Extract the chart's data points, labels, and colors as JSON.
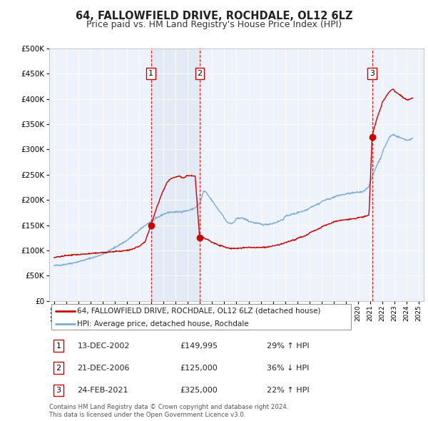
{
  "title": "64, FALLOWFIELD DRIVE, ROCHDALE, OL12 6LZ",
  "subtitle": "Price paid vs. HM Land Registry's House Price Index (HPI)",
  "title_fontsize": 10.5,
  "subtitle_fontsize": 9,
  "ylim": [
    0,
    500000
  ],
  "yticks": [
    0,
    50000,
    100000,
    150000,
    200000,
    250000,
    300000,
    350000,
    400000,
    450000,
    500000
  ],
  "xlim_start": 1994.6,
  "xlim_end": 2025.4,
  "xtick_years": [
    1995,
    1996,
    1997,
    1998,
    1999,
    2000,
    2001,
    2002,
    2003,
    2004,
    2005,
    2006,
    2007,
    2008,
    2009,
    2010,
    2011,
    2012,
    2013,
    2014,
    2015,
    2016,
    2017,
    2018,
    2019,
    2020,
    2021,
    2022,
    2023,
    2024,
    2025
  ],
  "sale_dates": [
    2002.96,
    2006.97,
    2021.15
  ],
  "sale_prices": [
    149995,
    125000,
    325000
  ],
  "sale_labels": [
    "1",
    "2",
    "3"
  ],
  "vline_color": "#cc0000",
  "shade_color": "#dde8f5",
  "property_line_color": "#cc0000",
  "hpi_line_color": "#7aadd4",
  "legend_property_label": "64, FALLOWFIELD DRIVE, ROCHDALE, OL12 6LZ (detached house)",
  "legend_hpi_label": "HPI: Average price, detached house, Rochdale",
  "transaction_rows": [
    {
      "num": "1",
      "date": "13-DEC-2002",
      "price": "£149,995",
      "hpi": "29% ↑ HPI"
    },
    {
      "num": "2",
      "date": "21-DEC-2006",
      "price": "£125,000",
      "hpi": "36% ↓ HPI"
    },
    {
      "num": "3",
      "date": "24-FEB-2021",
      "price": "£325,000",
      "hpi": "22% ↑ HPI"
    }
  ],
  "footnote": "Contains HM Land Registry data © Crown copyright and database right 2024.\nThis data is licensed under the Open Government Licence v3.0.",
  "bg_color": "#ffffff",
  "plot_bg_color": "#eef2fb",
  "grid_color": "#ffffff"
}
